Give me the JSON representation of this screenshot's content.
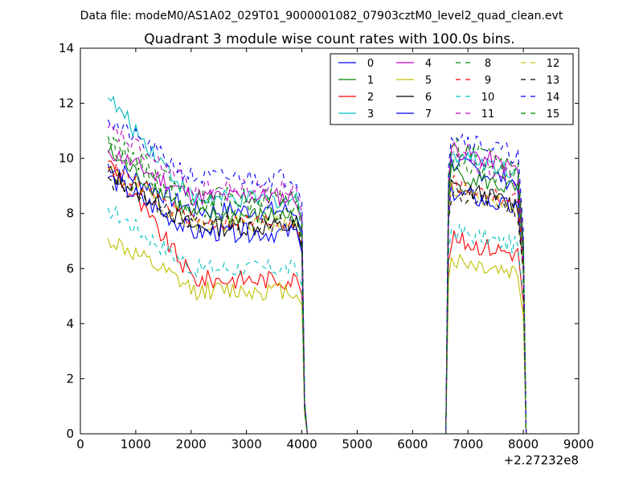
{
  "figure": {
    "suptitle": "Data file: modeM0/AS1A02_029T01_9000001082_07903cztM0_level2_quad_clean.evt"
  },
  "chart_data": {
    "type": "line",
    "title": "Quadrant 3 module wise count rates with 100.0s bins.",
    "xlabel": "",
    "ylabel": "",
    "x_offset_label": "+2.27232e8",
    "xlim": [
      0,
      9000
    ],
    "ylim": [
      0,
      14
    ],
    "xticks": [
      "0",
      "1000",
      "2000",
      "3000",
      "4000",
      "5000",
      "6000",
      "7000",
      "8000",
      "9000"
    ],
    "yticks": [
      "0",
      "2",
      "4",
      "6",
      "8",
      "10",
      "12",
      "14"
    ],
    "grid": false,
    "legend_position": "top-right",
    "x_segment_1_start": 500,
    "x_segment_1_end": 3900,
    "x_drop": [
      4000,
      4050,
      4100
    ],
    "x_rise": [
      6600,
      6650,
      6700
    ],
    "x_segment_2_start": 6700,
    "x_segment_2_end": 7900,
    "x_end": [
      8000,
      8050
    ],
    "series": [
      {
        "name": "0",
        "color": "#0000ff",
        "dash": "solid",
        "level1": 8.1,
        "level2": 9.2,
        "first": 9.8
      },
      {
        "name": "1",
        "color": "#008000",
        "dash": "solid",
        "level1": 7.9,
        "level2": 8.9,
        "first": 10.2
      },
      {
        "name": "2",
        "color": "#ff0000",
        "dash": "solid",
        "level1": 5.6,
        "level2": 6.6,
        "first": 9.9
      },
      {
        "name": "3",
        "color": "#00bfbf",
        "dash": "solid",
        "level1": 8.5,
        "level2": 9.6,
        "first": 12.2
      },
      {
        "name": "4",
        "color": "#bf00bf",
        "dash": "solid",
        "level1": 8.6,
        "level2": 9.7,
        "first": 10.3
      },
      {
        "name": "5",
        "color": "#bfbf00",
        "dash": "solid",
        "level1": 5.2,
        "level2": 5.9,
        "first": 7.1
      },
      {
        "name": "6",
        "color": "#000000",
        "dash": "solid",
        "level1": 7.5,
        "level2": 8.4,
        "first": 9.5
      },
      {
        "name": "7",
        "color": "#0000ff",
        "dash": "solid",
        "level1": 7.3,
        "level2": 8.2,
        "first": 9.3
      },
      {
        "name": "8",
        "color": "#008000",
        "dash": "dashed",
        "level1": 8.2,
        "level2": 9.3,
        "first": 10.6
      },
      {
        "name": "9",
        "color": "#ff0000",
        "dash": "dashed",
        "level1": 7.7,
        "level2": 8.5,
        "first": 9.7
      },
      {
        "name": "10",
        "color": "#00bfbf",
        "dash": "dashed",
        "level1": 6.0,
        "level2": 6.9,
        "first": 8.2
      },
      {
        "name": "11",
        "color": "#bf00bf",
        "dash": "dashed",
        "level1": 8.9,
        "level2": 9.4,
        "first": 11.1
      },
      {
        "name": "12",
        "color": "#bfbf00",
        "dash": "dashed",
        "level1": 7.6,
        "level2": 8.3,
        "first": 9.6
      },
      {
        "name": "13",
        "color": "#000000",
        "dash": "dashed",
        "level1": 7.6,
        "level2": 8.2,
        "first": 9.3
      },
      {
        "name": "14",
        "color": "#0000ff",
        "dash": "dashed",
        "level1": 9.3,
        "level2": 10.2,
        "first": 11.4
      },
      {
        "name": "15",
        "color": "#008000",
        "dash": "dashed",
        "level1": 8.6,
        "level2": 9.8,
        "first": 10.8
      }
    ]
  }
}
